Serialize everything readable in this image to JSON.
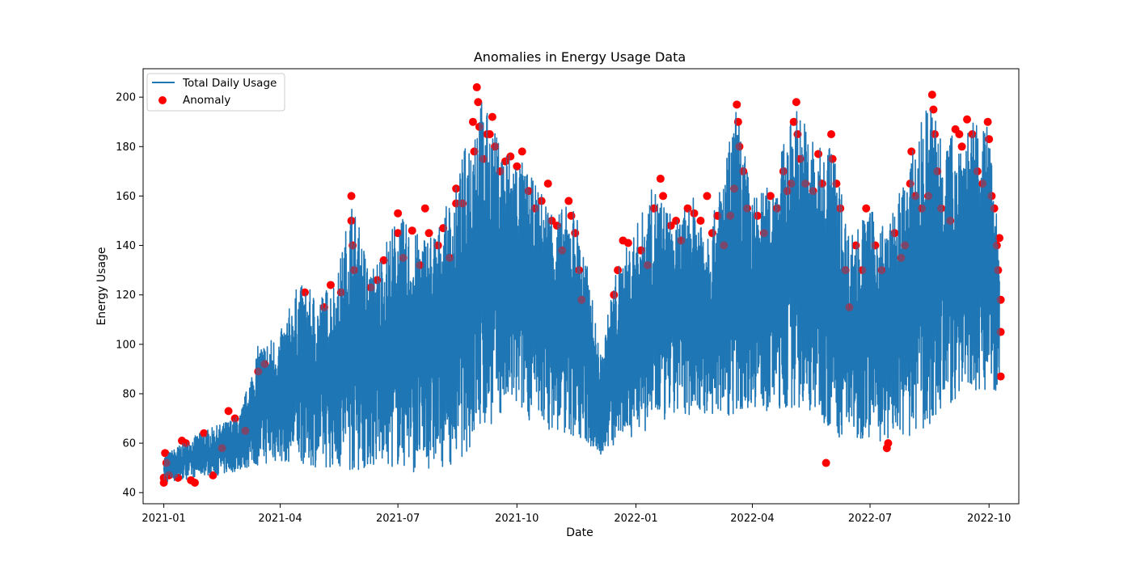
{
  "chart_data": {
    "type": "line",
    "title": "Anomalies in Energy Usage Data",
    "xlabel": "Date",
    "ylabel": "Energy Usage",
    "x_range": [
      "2020-12-16",
      "2022-10-24"
    ],
    "ylim": [
      35.5,
      211.5
    ],
    "y_ticks": [
      40,
      60,
      80,
      100,
      120,
      140,
      160,
      180,
      200
    ],
    "x_ticks": [
      {
        "date": "2021-01-01",
        "label": "2021-01"
      },
      {
        "date": "2021-04-01",
        "label": "2021-04"
      },
      {
        "date": "2021-07-01",
        "label": "2021-07"
      },
      {
        "date": "2021-10-01",
        "label": "2021-10"
      },
      {
        "date": "2022-01-01",
        "label": "2022-01"
      },
      {
        "date": "2022-04-01",
        "label": "2022-04"
      },
      {
        "date": "2022-07-01",
        "label": "2022-07"
      },
      {
        "date": "2022-10-01",
        "label": "2022-10"
      }
    ],
    "grid": false,
    "legend_position": "top-left",
    "series": [
      {
        "name": "Total Daily Usage",
        "kind": "line",
        "color": "#1f77b4",
        "envelope": {
          "dates": [
            "2021-01-01",
            "2021-01-15",
            "2021-02-01",
            "2021-02-15",
            "2021-03-01",
            "2021-03-15",
            "2021-04-01",
            "2021-04-15",
            "2021-05-01",
            "2021-05-15",
            "2021-05-26",
            "2021-06-10",
            "2021-07-01",
            "2021-07-15",
            "2021-08-01",
            "2021-08-15",
            "2021-09-01",
            "2021-09-15",
            "2021-10-01",
            "2021-10-15",
            "2021-11-01",
            "2021-11-15",
            "2021-11-25",
            "2021-12-05",
            "2021-12-15",
            "2021-12-25",
            "2022-01-15",
            "2022-02-01",
            "2022-02-15",
            "2022-03-01",
            "2022-03-20",
            "2022-04-01",
            "2022-04-15",
            "2022-05-05",
            "2022-05-25",
            "2022-06-01",
            "2022-06-15",
            "2022-07-01",
            "2022-07-15",
            "2022-08-01",
            "2022-08-15",
            "2022-09-01",
            "2022-09-15",
            "2022-10-01",
            "2022-10-09"
          ],
          "low": [
            44,
            45,
            47,
            47,
            49,
            51,
            52,
            52,
            50,
            50,
            48,
            50,
            50,
            48,
            50,
            52,
            60,
            70,
            72,
            68,
            64,
            62,
            58,
            55,
            58,
            62,
            65,
            70,
            72,
            70,
            72,
            75,
            72,
            74,
            70,
            62,
            62,
            62,
            60,
            62,
            66,
            75,
            80,
            82,
            80
          ],
          "high": [
            55,
            60,
            65,
            68,
            72,
            100,
            105,
            125,
            120,
            128,
            160,
            130,
            153,
            145,
            148,
            165,
            204,
            185,
            178,
            165,
            155,
            157,
            130,
            95,
            128,
            140,
            165,
            150,
            160,
            150,
            197,
            160,
            165,
            198,
            178,
            185,
            145,
            155,
            148,
            175,
            200,
            185,
            190,
            188,
            143
          ]
        }
      },
      {
        "name": "Anomaly",
        "kind": "scatter",
        "color": "#ff0000",
        "points": [
          [
            "2021-01-01",
            44
          ],
          [
            "2021-01-01",
            46
          ],
          [
            "2021-01-02",
            56
          ],
          [
            "2021-01-03",
            52
          ],
          [
            "2021-01-05",
            47
          ],
          [
            "2021-01-12",
            46
          ],
          [
            "2021-01-15",
            61
          ],
          [
            "2021-01-18",
            60
          ],
          [
            "2021-01-22",
            45
          ],
          [
            "2021-01-25",
            44
          ],
          [
            "2021-02-01",
            64
          ],
          [
            "2021-02-08",
            47
          ],
          [
            "2021-02-15",
            58
          ],
          [
            "2021-02-20",
            73
          ],
          [
            "2021-02-25",
            70
          ],
          [
            "2021-03-05",
            65
          ],
          [
            "2021-03-15",
            89
          ],
          [
            "2021-03-20",
            92
          ],
          [
            "2021-04-20",
            121
          ],
          [
            "2021-05-05",
            115
          ],
          [
            "2021-05-10",
            124
          ],
          [
            "2021-05-18",
            121
          ],
          [
            "2021-05-26",
            160
          ],
          [
            "2021-05-26",
            150
          ],
          [
            "2021-05-27",
            140
          ],
          [
            "2021-05-28",
            130
          ],
          [
            "2021-06-10",
            123
          ],
          [
            "2021-06-15",
            126
          ],
          [
            "2021-06-20",
            134
          ],
          [
            "2021-07-01",
            153
          ],
          [
            "2021-07-01",
            145
          ],
          [
            "2021-07-05",
            135
          ],
          [
            "2021-07-12",
            146
          ],
          [
            "2021-07-18",
            132
          ],
          [
            "2021-07-22",
            155
          ],
          [
            "2021-07-25",
            145
          ],
          [
            "2021-08-01",
            140
          ],
          [
            "2021-08-05",
            147
          ],
          [
            "2021-08-10",
            135
          ],
          [
            "2021-08-15",
            163
          ],
          [
            "2021-08-15",
            157
          ],
          [
            "2021-08-20",
            157
          ],
          [
            "2021-08-28",
            190
          ],
          [
            "2021-08-29",
            178
          ],
          [
            "2021-08-31",
            204
          ],
          [
            "2021-09-01",
            198
          ],
          [
            "2021-09-02",
            188
          ],
          [
            "2021-09-05",
            175
          ],
          [
            "2021-09-08",
            185
          ],
          [
            "2021-09-10",
            185
          ],
          [
            "2021-09-12",
            192
          ],
          [
            "2021-09-14",
            180
          ],
          [
            "2021-09-18",
            170
          ],
          [
            "2021-09-22",
            174
          ],
          [
            "2021-09-26",
            176
          ],
          [
            "2021-10-01",
            172
          ],
          [
            "2021-10-05",
            178
          ],
          [
            "2021-10-10",
            162
          ],
          [
            "2021-10-15",
            155
          ],
          [
            "2021-10-20",
            158
          ],
          [
            "2021-10-25",
            165
          ],
          [
            "2021-10-28",
            150
          ],
          [
            "2021-11-01",
            148
          ],
          [
            "2021-11-05",
            138
          ],
          [
            "2021-11-10",
            158
          ],
          [
            "2021-11-12",
            152
          ],
          [
            "2021-11-15",
            145
          ],
          [
            "2021-11-18",
            130
          ],
          [
            "2021-11-20",
            118
          ],
          [
            "2021-12-15",
            120
          ],
          [
            "2021-12-18",
            130
          ],
          [
            "2021-12-22",
            142
          ],
          [
            "2021-12-26",
            141
          ],
          [
            "2022-01-05",
            138
          ],
          [
            "2022-01-10",
            132
          ],
          [
            "2022-01-15",
            155
          ],
          [
            "2022-01-20",
            167
          ],
          [
            "2022-01-22",
            160
          ],
          [
            "2022-01-28",
            148
          ],
          [
            "2022-02-01",
            150
          ],
          [
            "2022-02-05",
            142
          ],
          [
            "2022-02-10",
            155
          ],
          [
            "2022-02-15",
            153
          ],
          [
            "2022-02-20",
            150
          ],
          [
            "2022-02-25",
            160
          ],
          [
            "2022-03-01",
            145
          ],
          [
            "2022-03-05",
            152
          ],
          [
            "2022-03-10",
            140
          ],
          [
            "2022-03-15",
            152
          ],
          [
            "2022-03-18",
            163
          ],
          [
            "2022-03-20",
            197
          ],
          [
            "2022-03-21",
            190
          ],
          [
            "2022-03-22",
            180
          ],
          [
            "2022-03-25",
            170
          ],
          [
            "2022-03-28",
            155
          ],
          [
            "2022-04-05",
            152
          ],
          [
            "2022-04-10",
            145
          ],
          [
            "2022-04-15",
            160
          ],
          [
            "2022-04-20",
            155
          ],
          [
            "2022-04-25",
            170
          ],
          [
            "2022-04-28",
            162
          ],
          [
            "2022-05-01",
            165
          ],
          [
            "2022-05-03",
            190
          ],
          [
            "2022-05-05",
            198
          ],
          [
            "2022-05-06",
            185
          ],
          [
            "2022-05-08",
            175
          ],
          [
            "2022-05-12",
            165
          ],
          [
            "2022-05-18",
            162
          ],
          [
            "2022-05-22",
            177
          ],
          [
            "2022-05-25",
            165
          ],
          [
            "2022-05-28",
            52
          ],
          [
            "2022-06-01",
            185
          ],
          [
            "2022-06-02",
            175
          ],
          [
            "2022-06-05",
            165
          ],
          [
            "2022-06-08",
            155
          ],
          [
            "2022-06-12",
            130
          ],
          [
            "2022-06-15",
            115
          ],
          [
            "2022-06-20",
            140
          ],
          [
            "2022-06-25",
            130
          ],
          [
            "2022-06-28",
            155
          ],
          [
            "2022-07-05",
            140
          ],
          [
            "2022-07-10",
            130
          ],
          [
            "2022-07-14",
            58
          ],
          [
            "2022-07-15",
            60
          ],
          [
            "2022-07-20",
            145
          ],
          [
            "2022-07-25",
            135
          ],
          [
            "2022-07-28",
            140
          ],
          [
            "2022-08-01",
            165
          ],
          [
            "2022-08-02",
            178
          ],
          [
            "2022-08-05",
            160
          ],
          [
            "2022-08-10",
            155
          ],
          [
            "2022-08-15",
            160
          ],
          [
            "2022-08-18",
            201
          ],
          [
            "2022-08-19",
            195
          ],
          [
            "2022-08-20",
            185
          ],
          [
            "2022-08-22",
            170
          ],
          [
            "2022-08-25",
            155
          ],
          [
            "2022-09-01",
            150
          ],
          [
            "2022-09-05",
            187
          ],
          [
            "2022-09-08",
            185
          ],
          [
            "2022-09-10",
            180
          ],
          [
            "2022-09-14",
            191
          ],
          [
            "2022-09-18",
            185
          ],
          [
            "2022-09-22",
            170
          ],
          [
            "2022-09-26",
            165
          ],
          [
            "2022-09-30",
            190
          ],
          [
            "2022-10-01",
            183
          ],
          [
            "2022-10-03",
            160
          ],
          [
            "2022-10-05",
            155
          ],
          [
            "2022-10-07",
            140
          ],
          [
            "2022-10-08",
            130
          ],
          [
            "2022-10-09",
            143
          ],
          [
            "2022-10-10",
            118
          ],
          [
            "2022-10-10",
            105
          ],
          [
            "2022-10-10",
            87
          ]
        ]
      }
    ]
  }
}
